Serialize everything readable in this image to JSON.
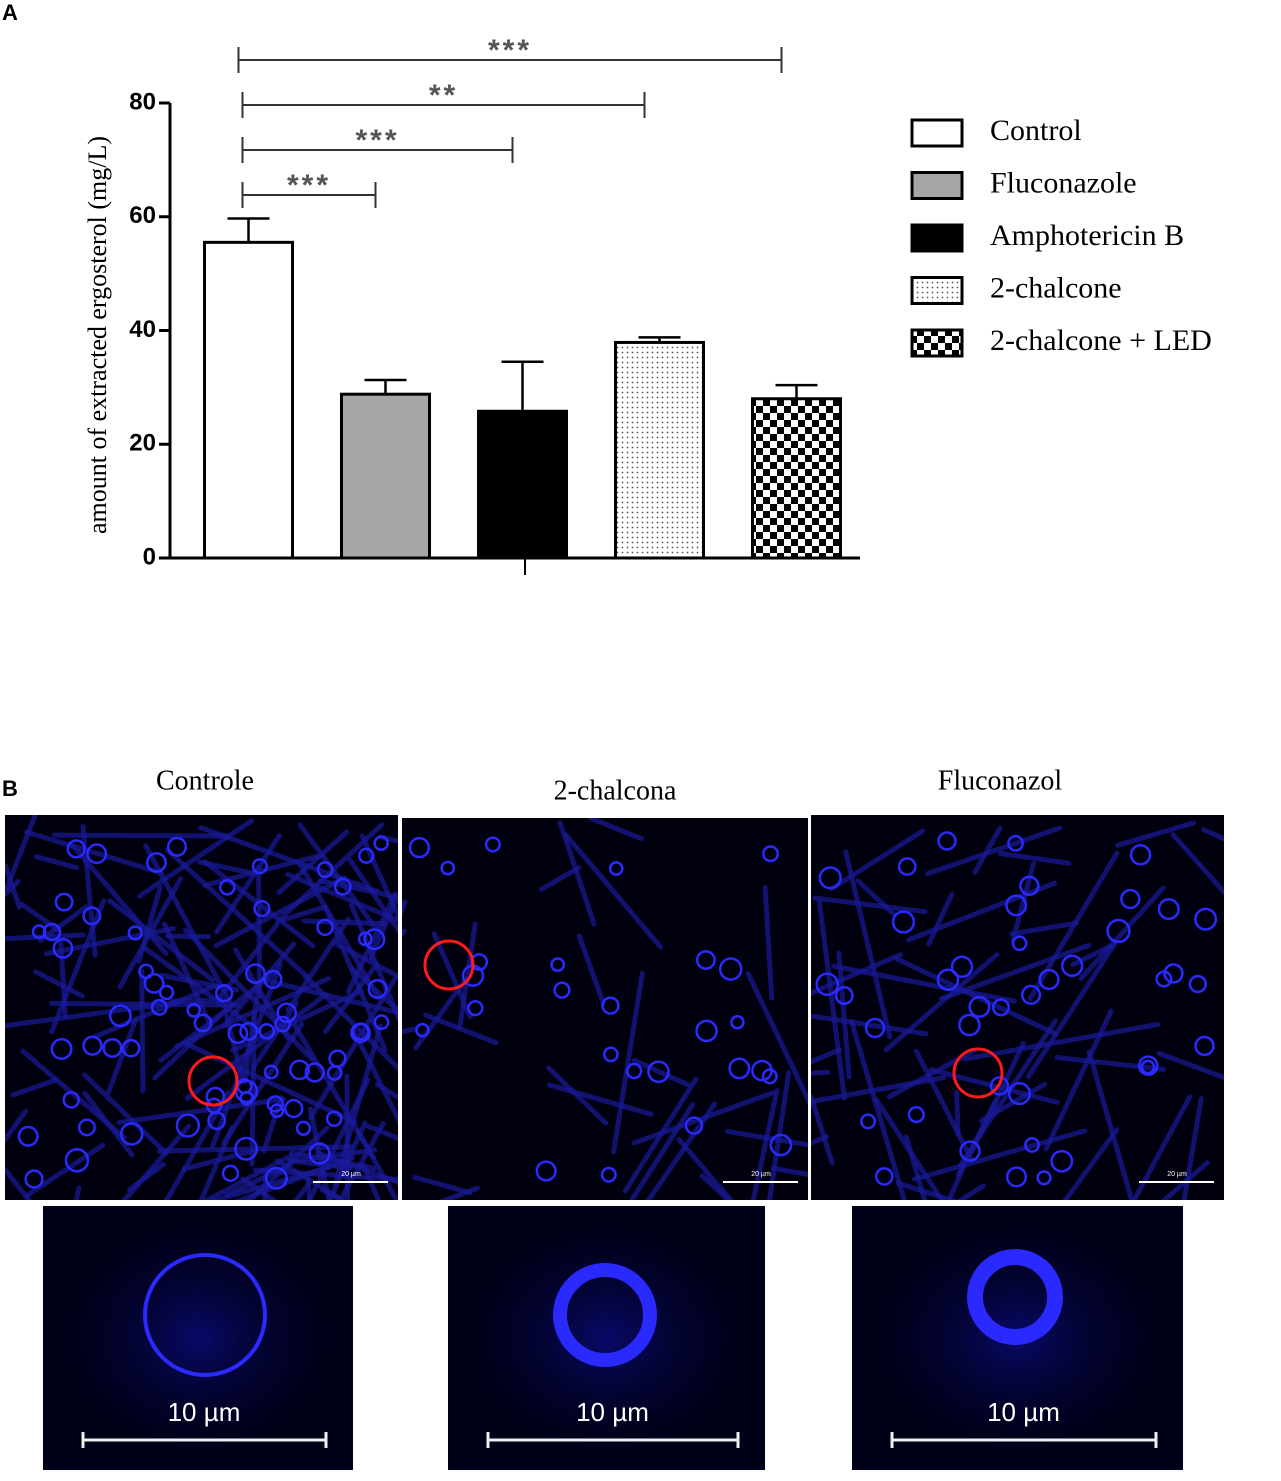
{
  "panel_a": {
    "label": "A"
  },
  "chart_data": {
    "type": "bar",
    "y_label": "amount of  extracted ergosterol (mg/L)",
    "categories": [
      "Control",
      "Fluconazole",
      "Amphotericin B",
      "2-chalcone",
      "2-chalcone + LED"
    ],
    "values": [
      55.5,
      28.8,
      25.8,
      37.9,
      28.0
    ],
    "errors": [
      4.2,
      2.5,
      8.7,
      0.9,
      2.4
    ],
    "colors": [
      "#ffffff",
      "#a6a6a6",
      "#000000",
      "#ffffff",
      "#ffffff"
    ],
    "patterns": [
      null,
      null,
      null,
      "dots",
      "checker"
    ],
    "ylim": [
      0,
      80
    ],
    "yticks": [
      0,
      20,
      40,
      60,
      80
    ],
    "significance": [
      {
        "between": [
          "Control",
          "Fluconazole"
        ],
        "label": "***"
      },
      {
        "between": [
          "Control",
          "Amphotericin B"
        ],
        "label": "***"
      },
      {
        "between": [
          "Control",
          "2-chalcone"
        ],
        "label": "**"
      },
      {
        "between": [
          "Control",
          "2-chalcone + LED"
        ],
        "label": "***"
      }
    ],
    "legend": "right"
  },
  "panel_b": {
    "label": "B",
    "images": [
      {
        "title": "Controle",
        "scale_label": "20 µm",
        "zoom_scale_label": "10 µm"
      },
      {
        "title": "2-chalcona",
        "scale_label": "20 µm",
        "zoom_scale_label": "10 µm"
      },
      {
        "title": "Fluconazol",
        "scale_label": "20 µm",
        "zoom_scale_label": "10 µm"
      }
    ]
  }
}
